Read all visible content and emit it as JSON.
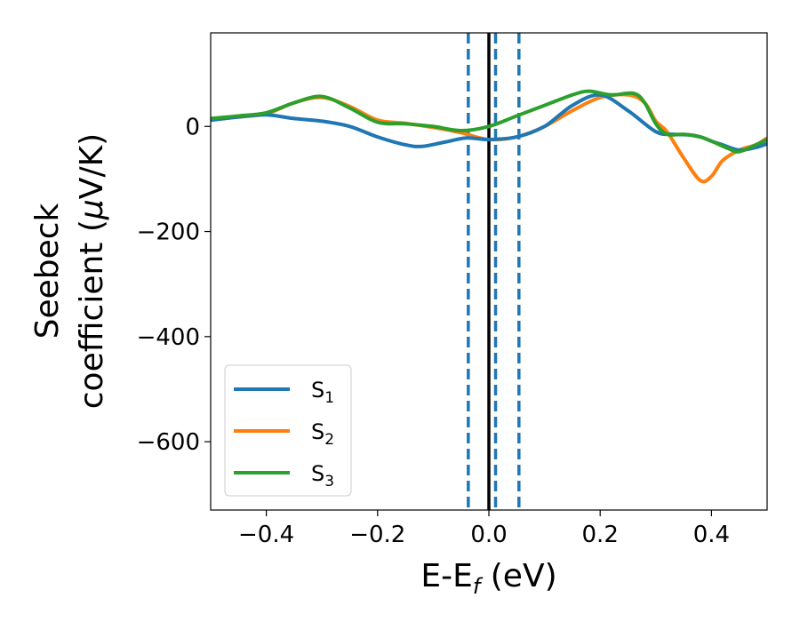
{
  "chart_data": {
    "type": "line",
    "xlabel": {
      "main": "E-E",
      "sub": "f",
      "unit": " (eV)"
    },
    "ylabel": {
      "line1": "Seebeck",
      "line2": "coefficient  (",
      "mu": "μ",
      "unit": "V/K)"
    },
    "xlim": [
      -0.5,
      0.5
    ],
    "ylim": [
      -730,
      178
    ],
    "xticks": [
      -0.4,
      -0.2,
      0.0,
      0.2,
      0.4
    ],
    "xtick_labels": [
      "−0.4",
      "−0.2",
      "0.0",
      "0.2",
      "0.4"
    ],
    "yticks": [
      0,
      -200,
      -400,
      -600
    ],
    "ytick_labels": [
      "0",
      "−200",
      "−400",
      "−600"
    ],
    "grid": false,
    "legend_position": "lower-left",
    "vlines": [
      {
        "x": 0.0,
        "style": "solid",
        "color": "#000000"
      },
      {
        "x": -0.037,
        "style": "dashed",
        "color": "#1f77b4"
      },
      {
        "x": 0.012,
        "style": "dashed",
        "color": "#1f77b4"
      },
      {
        "x": 0.054,
        "style": "dashed",
        "color": "#1f77b4"
      }
    ],
    "series": [
      {
        "name": "S",
        "sub": "1",
        "color": "#1f77b4",
        "x": [
          -0.5,
          -0.45,
          -0.4,
          -0.35,
          -0.3,
          -0.25,
          -0.2,
          -0.15,
          -0.12,
          -0.08,
          -0.04,
          0.0,
          0.05,
          0.1,
          0.15,
          0.2,
          0.25,
          0.3,
          0.33,
          0.36,
          0.38,
          0.4,
          0.42,
          0.45,
          0.48,
          0.5
        ],
        "y": [
          12,
          18,
          22,
          15,
          10,
          0,
          -20,
          -35,
          -38,
          -30,
          -22,
          -25,
          -20,
          0,
          40,
          60,
          30,
          -10,
          -15,
          -16,
          -20,
          -28,
          -35,
          -45,
          -40,
          -33
        ]
      },
      {
        "name": "S",
        "sub": "2",
        "color": "#ff7f0e",
        "x": [
          -0.5,
          -0.45,
          -0.4,
          -0.35,
          -0.3,
          -0.25,
          -0.2,
          -0.15,
          -0.1,
          -0.05,
          0.0,
          0.05,
          0.1,
          0.15,
          0.2,
          0.25,
          0.28,
          0.3,
          0.32,
          0.35,
          0.38,
          0.4,
          0.42,
          0.45,
          0.48,
          0.5
        ],
        "y": [
          12,
          18,
          24,
          45,
          55,
          38,
          12,
          6,
          -2,
          -12,
          -25,
          -20,
          0,
          30,
          55,
          60,
          45,
          10,
          -10,
          -60,
          -103,
          -95,
          -65,
          -45,
          -35,
          -22
        ]
      },
      {
        "name": "S",
        "sub": "3",
        "color": "#2ca02c",
        "x": [
          -0.5,
          -0.45,
          -0.4,
          -0.35,
          -0.3,
          -0.25,
          -0.2,
          -0.15,
          -0.1,
          -0.05,
          0.0,
          0.05,
          0.1,
          0.15,
          0.18,
          0.22,
          0.26,
          0.28,
          0.3,
          0.32,
          0.35,
          0.38,
          0.4,
          0.43,
          0.45,
          0.48,
          0.5
        ],
        "y": [
          15,
          20,
          26,
          45,
          57,
          35,
          8,
          5,
          0,
          -8,
          0,
          20,
          40,
          60,
          67,
          60,
          63,
          45,
          5,
          -15,
          -15,
          -20,
          -28,
          -42,
          -48,
          -35,
          -25
        ]
      }
    ]
  }
}
